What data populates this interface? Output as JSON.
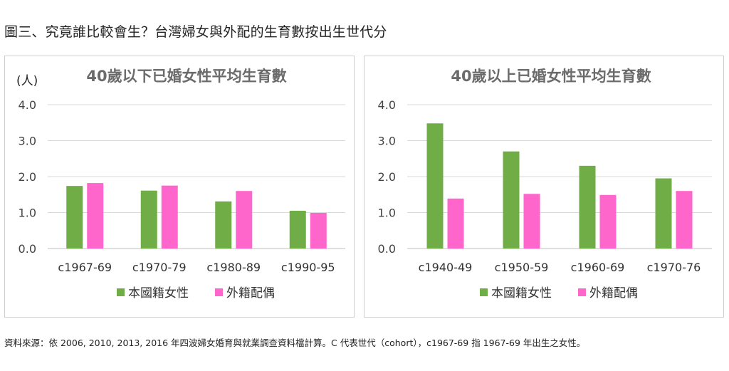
{
  "page_title": "圖三、究竟誰比較會生？台灣婦女與外配的生育數按出生世代分",
  "source_note": "資料來源：依 2006, 2010, 2013, 2016 年四波婦女婚育與就業調查資料檔計算。C 代表世代（cohort），c1967-69 指 1967-69 年出生之女性。",
  "colors": {
    "native": "#70ad47",
    "foreign": "#ff66cc"
  },
  "chart_data": [
    {
      "type": "bar",
      "title": "40歲以下已婚女性平均生育數",
      "ylabel": "(人)",
      "ylim": [
        0,
        4
      ],
      "yticks": [
        "0.0",
        "1.0",
        "2.0",
        "3.0",
        "4.0"
      ],
      "grid": true,
      "legend": "bottom",
      "categories": [
        "c1967-69",
        "c1970-79",
        "c1980-89",
        "c1990-95"
      ],
      "series": [
        {
          "name": "本國籍女性",
          "values": [
            1.74,
            1.61,
            1.31,
            1.05
          ]
        },
        {
          "name": "外籍配偶",
          "values": [
            1.82,
            1.75,
            1.6,
            0.99
          ]
        }
      ]
    },
    {
      "type": "bar",
      "title": "40歲以上已婚女性平均生育數",
      "ylabel": "",
      "ylim": [
        0,
        4
      ],
      "yticks": [
        "0.0",
        "1.0",
        "2.0",
        "3.0",
        "4.0"
      ],
      "grid": true,
      "legend": "bottom",
      "categories": [
        "c1940-49",
        "c1950-59",
        "c1960-69",
        "c1970-76"
      ],
      "series": [
        {
          "name": "本國籍女性",
          "values": [
            3.48,
            2.7,
            2.3,
            1.95
          ]
        },
        {
          "name": "外籍配偶",
          "values": [
            1.39,
            1.52,
            1.49,
            1.6
          ]
        }
      ]
    }
  ]
}
